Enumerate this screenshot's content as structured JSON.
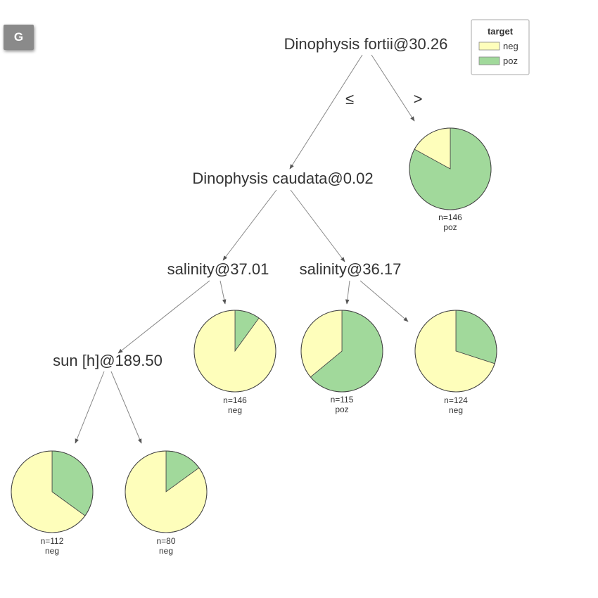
{
  "badge": {
    "label": "G"
  },
  "legend": {
    "title": "target",
    "items": [
      {
        "label": "neg",
        "color": "#fefebb"
      },
      {
        "label": "poz",
        "color": "#a1d99b"
      }
    ]
  },
  "colors": {
    "neg": "#fefebb",
    "poz": "#a1d99b",
    "edge": "#888888",
    "text": "#333333"
  },
  "tree": {
    "root": {
      "label": "Dinophysis fortii@30.26"
    },
    "edge_labels": {
      "left": "≤",
      "right": ">"
    },
    "n1": {
      "label": "Dinophysis caudata@0.02"
    },
    "n2": {
      "label": "salinity@37.01"
    },
    "n3": {
      "label": "salinity@36.17"
    },
    "n4": {
      "label": "sun [h]@189.50"
    }
  },
  "leaves": [
    {
      "id": "leaf-1",
      "count": "n=146",
      "class": "poz",
      "neg_fraction": 0.17
    },
    {
      "id": "leaf-2",
      "count": "n=146",
      "class": "neg",
      "neg_fraction": 0.9
    },
    {
      "id": "leaf-3",
      "count": "n=115",
      "class": "poz",
      "neg_fraction": 0.36
    },
    {
      "id": "leaf-4",
      "count": "n=124",
      "class": "neg",
      "neg_fraction": 0.7
    },
    {
      "id": "leaf-5",
      "count": "n=112",
      "class": "neg",
      "neg_fraction": 0.65
    },
    {
      "id": "leaf-6",
      "count": "n=80",
      "class": "neg",
      "neg_fraction": 0.85
    }
  ]
}
